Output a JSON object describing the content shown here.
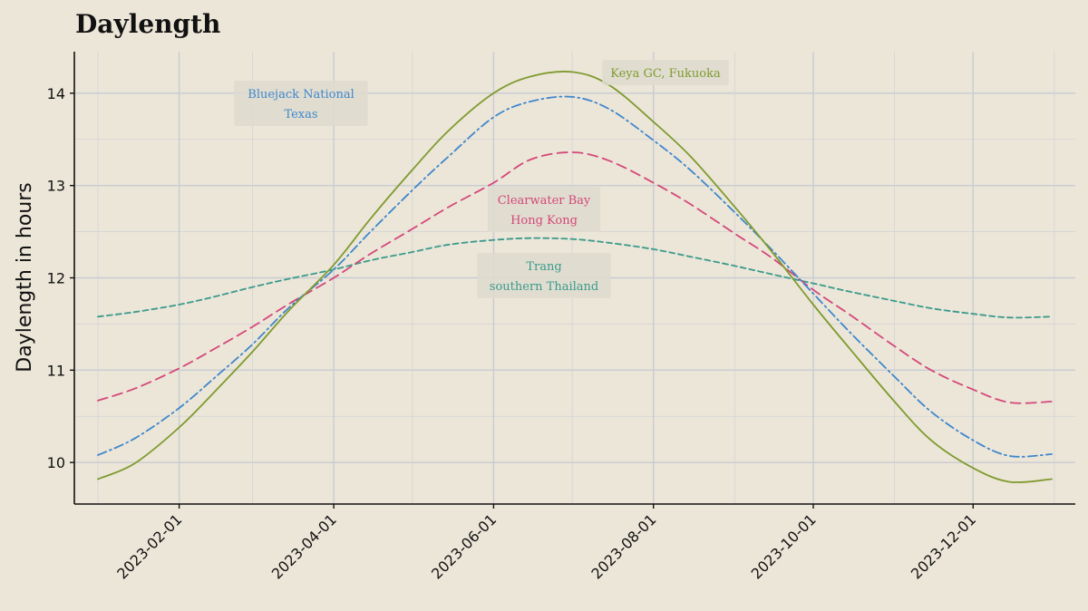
{
  "chart_data": {
    "type": "line",
    "title": "Daylength",
    "xlabel": "",
    "ylabel": "Daylength in hours",
    "x": [
      "2023-01-01",
      "2023-01-15",
      "2023-02-01",
      "2023-02-15",
      "2023-03-01",
      "2023-03-15",
      "2023-04-01",
      "2023-04-15",
      "2023-05-01",
      "2023-05-15",
      "2023-06-01",
      "2023-06-15",
      "2023-07-01",
      "2023-07-15",
      "2023-08-01",
      "2023-08-15",
      "2023-09-01",
      "2023-09-15",
      "2023-10-01",
      "2023-10-15",
      "2023-11-01",
      "2023-11-15",
      "2023-12-01",
      "2023-12-15",
      "2023-12-31"
    ],
    "xlim": [
      "2022-12-23",
      "2024-01-09"
    ],
    "ylim": [
      9.55,
      14.45
    ],
    "x_ticks": [
      "2023-02-01",
      "2023-04-01",
      "2023-06-01",
      "2023-08-01",
      "2023-10-01",
      "2023-12-01"
    ],
    "y_ticks": [
      10,
      11,
      12,
      13,
      14
    ],
    "grid": true,
    "series": [
      {
        "key": "trang",
        "color": "#3a9a8c",
        "dash": "6,4",
        "values": [
          11.58,
          11.63,
          11.71,
          11.8,
          11.9,
          11.99,
          12.09,
          12.19,
          12.28,
          12.36,
          12.41,
          12.43,
          12.42,
          12.38,
          12.31,
          12.23,
          12.13,
          12.04,
          11.94,
          11.85,
          11.75,
          11.67,
          11.61,
          11.57,
          11.58
        ]
      },
      {
        "key": "hongkong",
        "color": "#d4477a",
        "dash": "11,6",
        "values": [
          10.67,
          10.8,
          11.02,
          11.24,
          11.47,
          11.72,
          12.0,
          12.26,
          12.53,
          12.77,
          13.03,
          13.28,
          13.36,
          13.27,
          13.03,
          12.8,
          12.48,
          12.22,
          11.87,
          11.6,
          11.26,
          11.0,
          10.79,
          10.65,
          10.66
        ]
      },
      {
        "key": "texas",
        "color": "#3f87cc",
        "dash": "10,4,2,4",
        "values": [
          10.08,
          10.26,
          10.59,
          10.93,
          11.28,
          11.68,
          12.09,
          12.5,
          12.95,
          13.32,
          13.74,
          13.91,
          13.96,
          13.83,
          13.49,
          13.17,
          12.71,
          12.31,
          11.83,
          11.41,
          10.93,
          10.55,
          10.24,
          10.07,
          10.09
        ]
      },
      {
        "key": "fukuoka",
        "color": "#7f9a2e",
        "dash": "",
        "values": [
          9.82,
          9.99,
          10.38,
          10.78,
          11.2,
          11.65,
          12.14,
          12.64,
          13.17,
          13.6,
          14.0,
          14.18,
          14.23,
          14.09,
          13.69,
          13.32,
          12.77,
          12.29,
          11.71,
          11.23,
          10.66,
          10.24,
          9.94,
          9.79,
          9.82
        ]
      }
    ],
    "annotations": [
      {
        "key": "fukuoka",
        "lines": [
          "Keya GC, Fukuoka"
        ]
      },
      {
        "key": "texas",
        "lines": [
          "Bluejack National",
          "Texas"
        ]
      },
      {
        "key": "hongkong",
        "lines": [
          "Clearwater Bay",
          "Hong Kong"
        ]
      },
      {
        "key": "trang",
        "lines": [
          "Trang",
          "southern Thailand"
        ]
      }
    ]
  }
}
